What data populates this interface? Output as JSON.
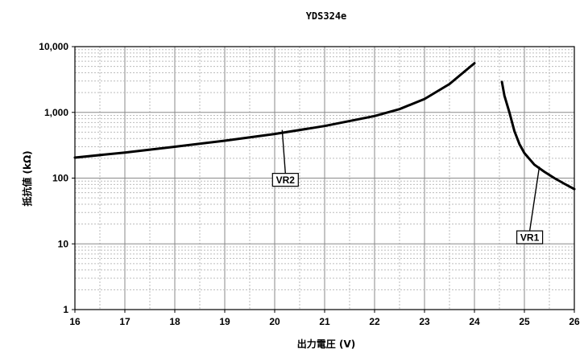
{
  "chart_data": {
    "type": "line",
    "title": "YDS324e",
    "xlabel": "出力電圧 (V)",
    "ylabel": "抵抗値 (kΩ)",
    "y_scale": "log",
    "xlim": [
      16,
      26
    ],
    "ylim": [
      1,
      10000
    ],
    "x_ticks": [
      16,
      17,
      18,
      19,
      20,
      21,
      22,
      23,
      24,
      25,
      26
    ],
    "x_tick_labels": [
      "16",
      "17",
      "18",
      "19",
      "20",
      "21",
      "22",
      "23",
      "24",
      "25",
      "26"
    ],
    "y_ticks": [
      1,
      10,
      100,
      1000,
      10000
    ],
    "y_tick_labels": [
      "1",
      "10",
      "100",
      "1,000",
      "10,000"
    ],
    "grid": true,
    "legend": "none",
    "series": [
      {
        "name": "VR2",
        "color": "#000000",
        "points": [
          [
            16.0,
            205
          ],
          [
            17.0,
            245
          ],
          [
            18.0,
            300
          ],
          [
            19.0,
            370
          ],
          [
            20.0,
            470
          ],
          [
            21.0,
            620
          ],
          [
            22.0,
            880
          ],
          [
            22.5,
            1120
          ],
          [
            23.0,
            1600
          ],
          [
            23.5,
            2700
          ],
          [
            24.0,
            5600
          ]
        ]
      },
      {
        "name": "VR1",
        "color": "#000000",
        "points": [
          [
            24.55,
            2900
          ],
          [
            24.6,
            1800
          ],
          [
            24.7,
            1000
          ],
          [
            24.8,
            520
          ],
          [
            24.9,
            330
          ],
          [
            25.0,
            240
          ],
          [
            25.2,
            160
          ],
          [
            25.4,
            125
          ],
          [
            25.6,
            100
          ],
          [
            25.8,
            82
          ],
          [
            26.0,
            68
          ]
        ]
      }
    ],
    "annotations": [
      {
        "text": "VR2",
        "x": 20.15,
        "y": 540
      },
      {
        "text": "VR1",
        "x": 25.3,
        "y": 150
      }
    ]
  }
}
